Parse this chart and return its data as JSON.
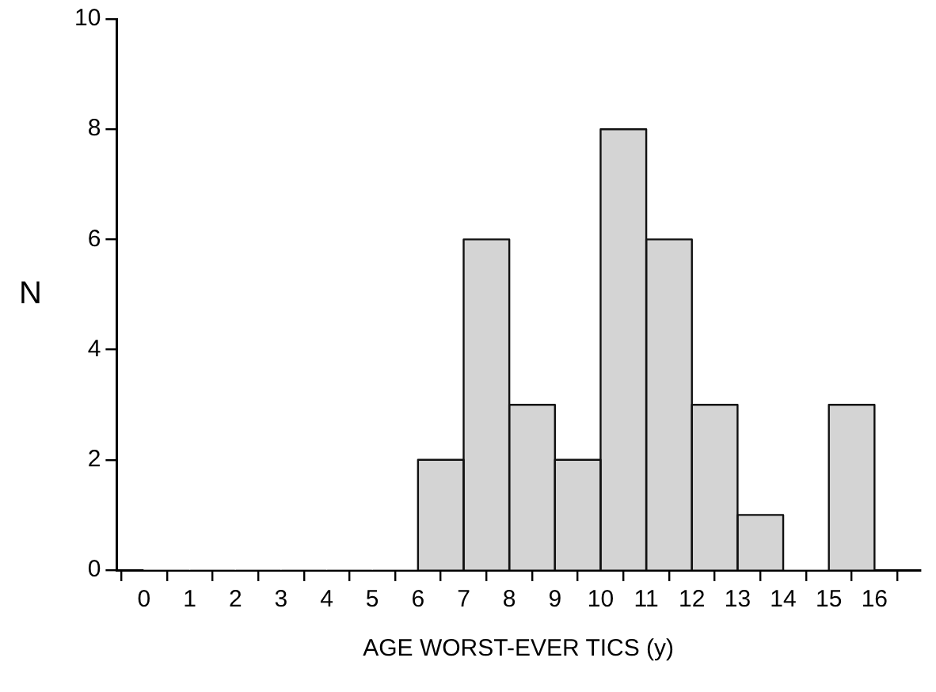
{
  "chart_data": {
    "type": "histogram",
    "xlabel": "AGE WORST-EVER TICS (y)",
    "ylabel": "N",
    "bins": [
      0,
      1,
      2,
      3,
      4,
      5,
      6,
      7,
      8,
      9,
      10,
      11,
      12,
      13,
      14,
      15,
      16
    ],
    "values": [
      0,
      0,
      0,
      0,
      0,
      0,
      2,
      6,
      3,
      2,
      8,
      6,
      3,
      1,
      0,
      3
    ],
    "color": "#d4d4d4",
    "xlim": [
      -0.6,
      17
    ],
    "xticks": [
      0,
      1,
      2,
      3,
      4,
      5,
      6,
      7,
      8,
      9,
      10,
      11,
      12,
      13,
      14,
      15,
      16
    ],
    "ylim": [
      0,
      10
    ],
    "yticks": [
      0,
      2,
      4,
      6,
      8,
      10
    ],
    "grid": false,
    "legend": false
  }
}
